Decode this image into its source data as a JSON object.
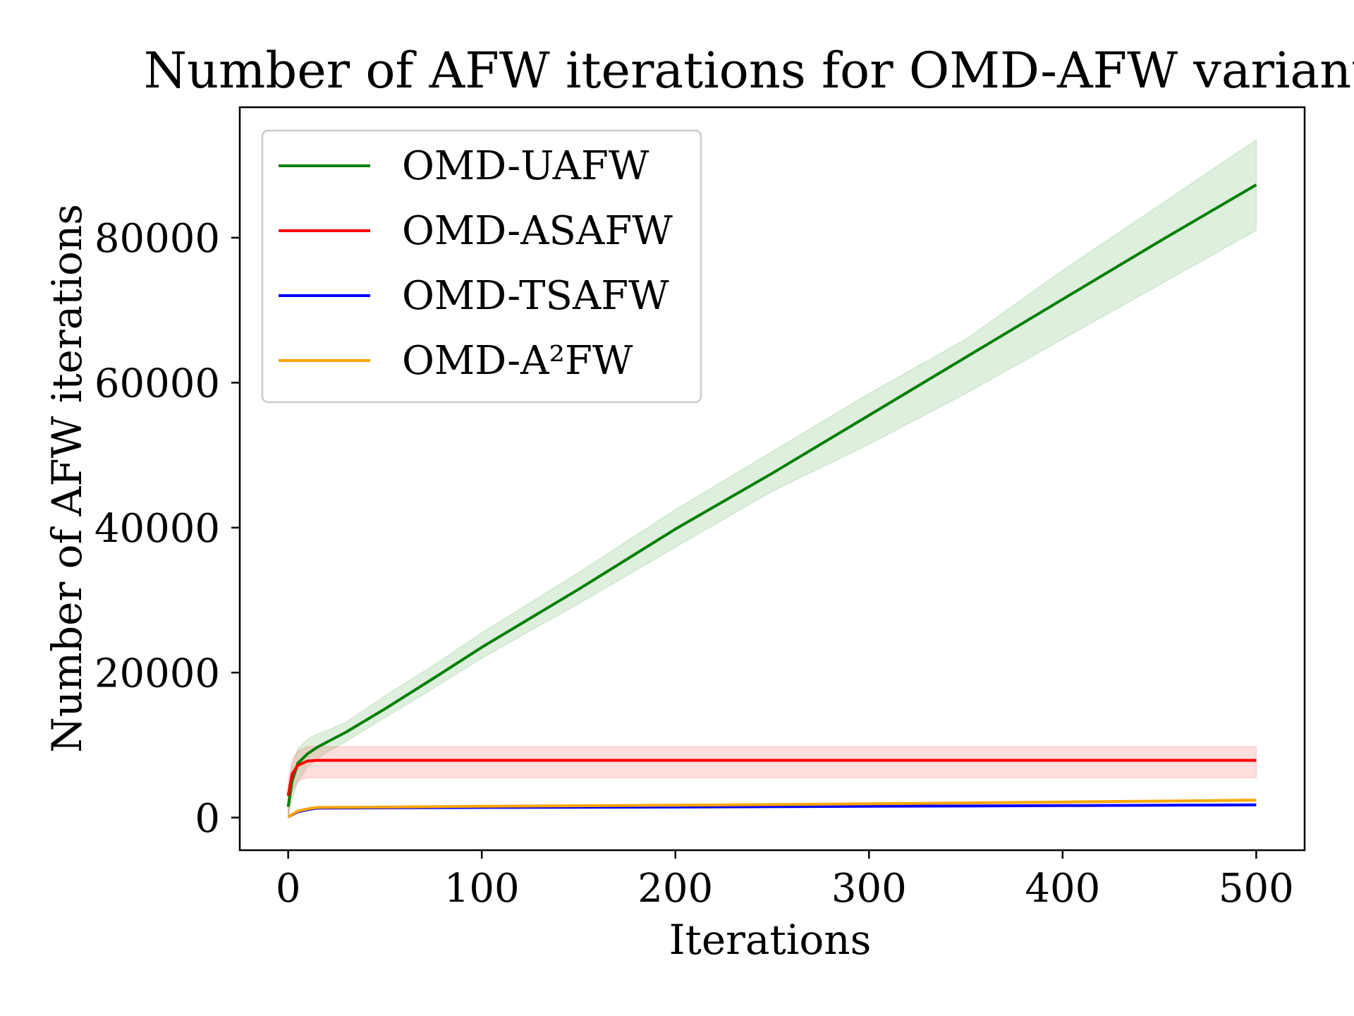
{
  "chart_data": {
    "type": "line",
    "title": "Number of AFW iterations for OMD-AFW variants",
    "xlabel": "Iterations",
    "ylabel": "Number of AFW iterations",
    "xlim": [
      -25,
      525
    ],
    "ylim": [
      -4500,
      98000
    ],
    "xticks": [
      0,
      100,
      200,
      300,
      400,
      500
    ],
    "yticks": [
      0,
      20000,
      40000,
      60000,
      80000
    ],
    "grid": false,
    "legend_position": "top-left",
    "series": [
      {
        "name": "OMD-UAFW",
        "color": "#008000",
        "x": [
          0,
          2,
          5,
          10,
          15,
          20,
          30,
          50,
          75,
          100,
          150,
          200,
          250,
          300,
          350,
          400,
          450,
          500
        ],
        "y": [
          1500,
          5000,
          7500,
          8800,
          9700,
          10400,
          11800,
          15000,
          19200,
          23500,
          31500,
          39800,
          47500,
          55500,
          63500,
          71500,
          79500,
          87300
        ],
        "band_low": [
          0,
          2500,
          5000,
          7000,
          8000,
          9000,
          10500,
          13800,
          17800,
          22000,
          29500,
          37300,
          45000,
          51500,
          58500,
          66000,
          73500,
          81000
        ],
        "band_high": [
          3000,
          7000,
          9500,
          10800,
          11500,
          12000,
          13200,
          16800,
          21000,
          25500,
          33800,
          42500,
          50500,
          58500,
          66000,
          75500,
          84500,
          93500
        ]
      },
      {
        "name": "OMD-ASAFW",
        "color": "#ff0000",
        "x": [
          0,
          2,
          5,
          10,
          15,
          20,
          500
        ],
        "y": [
          3000,
          6000,
          7200,
          7800,
          7900,
          7900,
          7900
        ],
        "band_low": [
          0,
          3500,
          5000,
          5500,
          5500,
          5500,
          5500
        ],
        "band_high": [
          5000,
          8000,
          9200,
          9800,
          9800,
          9800,
          9800
        ]
      },
      {
        "name": "OMD-TSAFW",
        "color": "#0000ff",
        "x": [
          0,
          5,
          10,
          15,
          50,
          100,
          200,
          300,
          400,
          500
        ],
        "y": [
          100,
          800,
          1100,
          1300,
          1350,
          1400,
          1450,
          1550,
          1650,
          1750
        ]
      },
      {
        "name": "OMD-A²FW",
        "color": "#ffa500",
        "x": [
          0,
          5,
          10,
          15,
          50,
          100,
          200,
          300,
          400,
          500
        ],
        "y": [
          100,
          900,
          1200,
          1400,
          1450,
          1550,
          1700,
          1900,
          2150,
          2400
        ]
      }
    ]
  }
}
